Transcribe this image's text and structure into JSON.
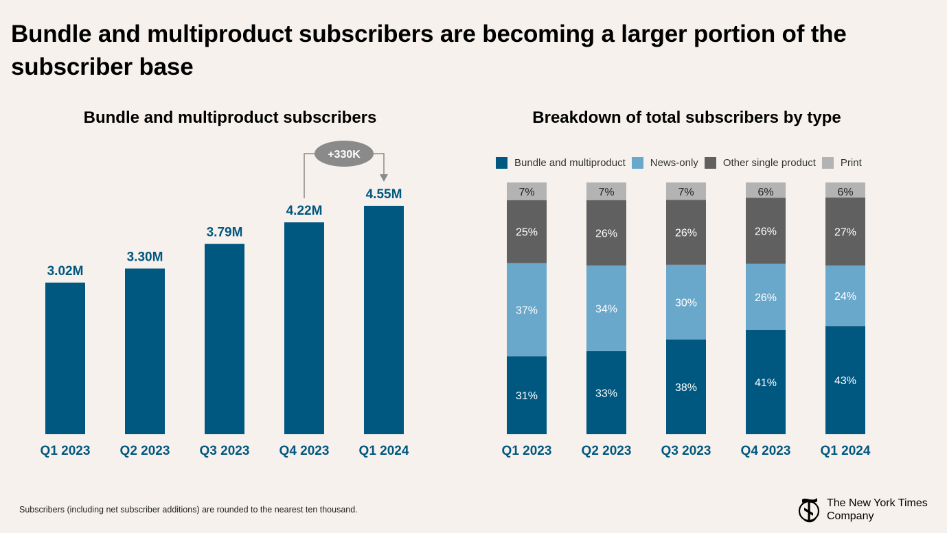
{
  "page": {
    "title": "Bundle and multiproduct subscribers are becoming a larger portion of the subscriber base",
    "footnote": "Subscribers (including net subscriber additions) are rounded to the nearest ten thousand.",
    "brand_line1": "The New York Times",
    "brand_line2": "Company"
  },
  "colors": {
    "bundle": "#00577f",
    "news_only": "#6aa8cb",
    "other_single": "#606060",
    "print": "#b3b3b3",
    "annotation": "#8a8a8a"
  },
  "chart_data": [
    {
      "type": "bar",
      "title": "Bundle and multiproduct subscribers",
      "categories": [
        "Q1 2023",
        "Q2 2023",
        "Q3 2023",
        "Q4 2023",
        "Q1 2024"
      ],
      "values": [
        3.02,
        3.3,
        3.79,
        4.22,
        4.55
      ],
      "data_labels": [
        "3.02M",
        "3.30M",
        "3.79M",
        "4.22M",
        "4.55M"
      ],
      "units": "millions",
      "annotation": {
        "label": "+330K",
        "from": "Q4 2023",
        "to": "Q1 2024"
      }
    },
    {
      "type": "bar",
      "stacked": true,
      "title": "Breakdown of total subscribers by type",
      "categories": [
        "Q1 2023",
        "Q2 2023",
        "Q3 2023",
        "Q4 2023",
        "Q1 2024"
      ],
      "series": [
        {
          "name": "Bundle and multiproduct",
          "values": [
            31,
            33,
            38,
            41,
            43
          ]
        },
        {
          "name": "News-only",
          "values": [
            37,
            34,
            30,
            26,
            24
          ]
        },
        {
          "name": "Other single product",
          "values": [
            25,
            26,
            26,
            26,
            27
          ]
        },
        {
          "name": "Print",
          "values": [
            7,
            7,
            7,
            6,
            6
          ]
        }
      ],
      "units": "percent",
      "legend_position": "top"
    }
  ]
}
